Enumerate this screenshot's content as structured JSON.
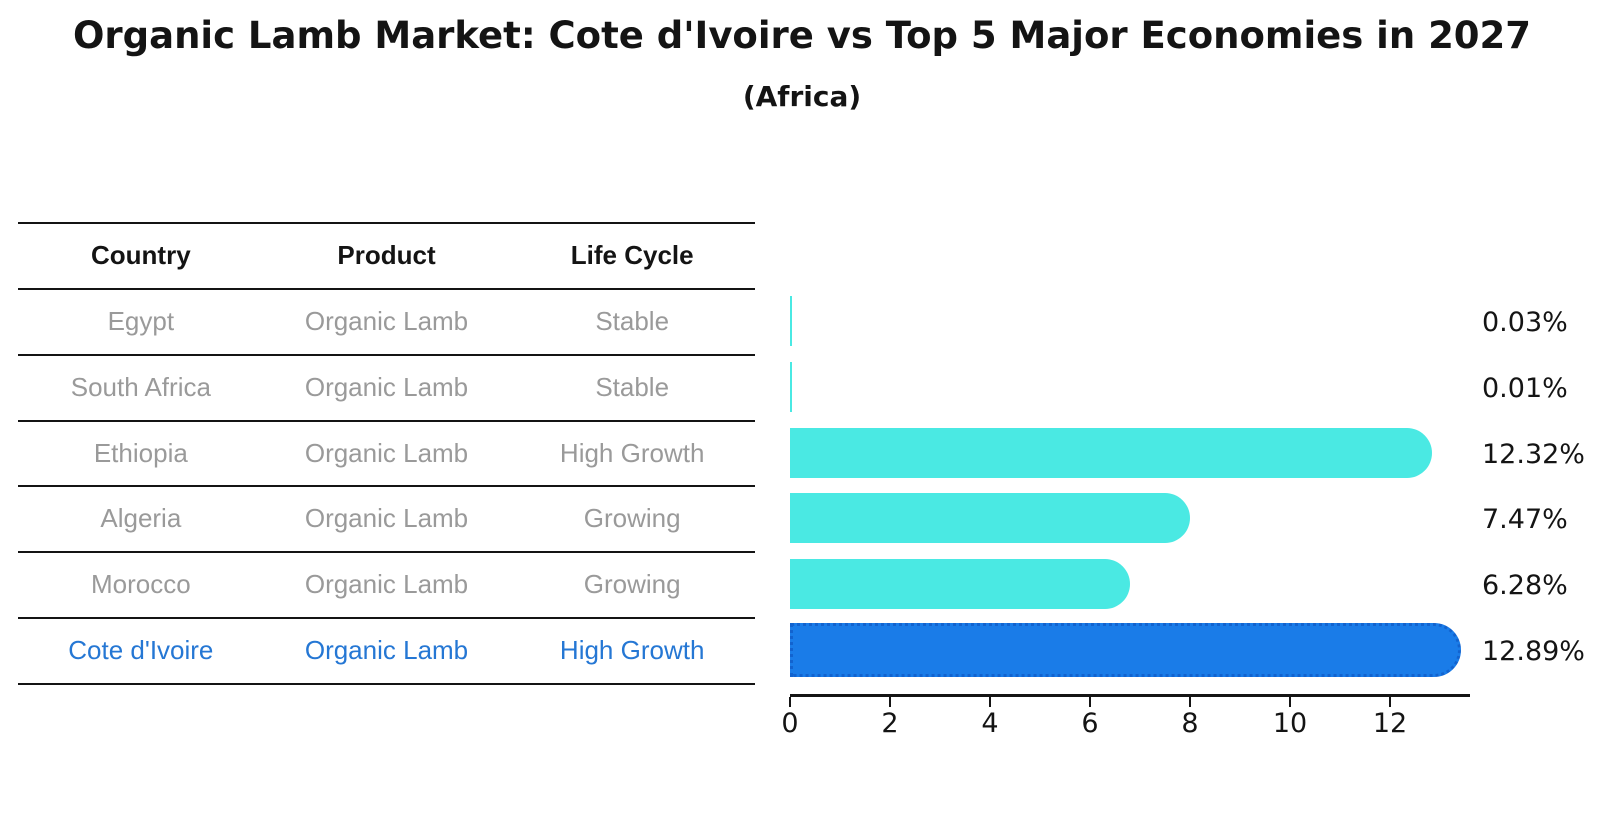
{
  "title": "Organic Lamb Market: Cote d'Ivoire vs Top 5 Major Economies in 2027",
  "subtitle": "(Africa)",
  "table": {
    "headers": [
      "Country",
      "Product",
      "Life Cycle"
    ],
    "rows": [
      {
        "country": "Egypt",
        "product": "Organic Lamb",
        "life_cycle": "Stable",
        "highlighted": false
      },
      {
        "country": "South Africa",
        "product": "Organic Lamb",
        "life_cycle": "Stable",
        "highlighted": false
      },
      {
        "country": "Ethiopia",
        "product": "Organic Lamb",
        "life_cycle": "High Growth",
        "highlighted": false
      },
      {
        "country": "Algeria",
        "product": "Organic Lamb",
        "life_cycle": "Growing",
        "highlighted": false
      },
      {
        "country": "Morocco",
        "product": "Organic Lamb",
        "life_cycle": "Growing",
        "highlighted": false
      },
      {
        "country": "Cote d'Ivoire",
        "product": "Organic Lamb",
        "life_cycle": "High Growth",
        "highlighted": true
      }
    ]
  },
  "chart_data": {
    "type": "bar",
    "orientation": "horizontal",
    "title": "Organic Lamb Market: Cote d'Ivoire vs Top 5 Major Economies in 2027",
    "subtitle": "(Africa)",
    "categories": [
      "Egypt",
      "South Africa",
      "Ethiopia",
      "Algeria",
      "Morocco",
      "Cote d'Ivoire"
    ],
    "values": [
      0.03,
      0.01,
      12.32,
      7.47,
      6.28,
      12.89
    ],
    "value_labels": [
      "0.03%",
      "0.01%",
      "12.32%",
      "7.47%",
      "6.28%",
      "12.89%"
    ],
    "unit": "%",
    "x_ticks": [
      0,
      2,
      4,
      6,
      8,
      10,
      12
    ],
    "xlim": [
      0,
      13.6
    ],
    "grid": false,
    "legend": false,
    "highlight_index": 5,
    "bar_color": "#4ae9e3",
    "highlight_bar_color": "#1a7ce8",
    "highlight_border_color": "#1263cf",
    "highlight_text_color": "#2577d4",
    "muted_text_color": "#9a9a9a"
  }
}
